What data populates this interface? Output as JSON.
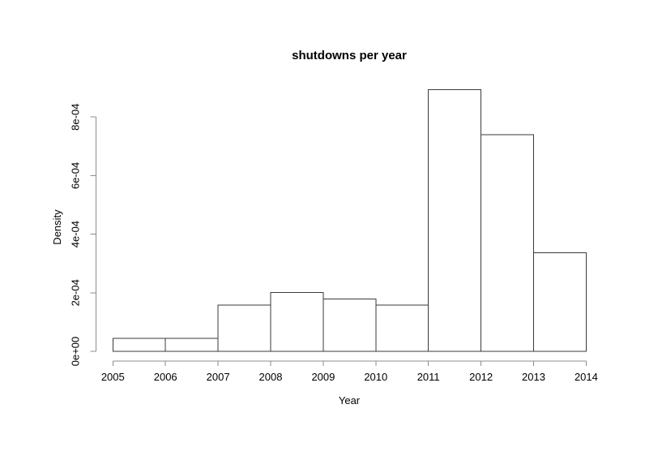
{
  "chart_data": {
    "type": "histogram",
    "title": "shutdowns per year",
    "xlabel": "Year",
    "ylabel": "Density",
    "bin_edges": [
      2005,
      2006,
      2007,
      2008,
      2009,
      2010,
      2011,
      2012,
      2013,
      2014
    ],
    "densities": [
      4.4e-05,
      4.4e-05,
      0.000158,
      0.000201,
      0.000179,
      0.000158,
      0.000894,
      0.000739,
      0.000337
    ],
    "x_tick_labels": [
      "2005",
      "2006",
      "2007",
      "2008",
      "2009",
      "2010",
      "2011",
      "2012",
      "2013",
      "2014"
    ],
    "y_tick_labels": [
      "0e+00",
      "2e-04",
      "4e-04",
      "6e-04",
      "8e-04"
    ],
    "y_tick_values": [
      0,
      0.0002,
      0.0004,
      0.0006,
      0.0008
    ],
    "ylim": [
      0,
      0.0008
    ],
    "grid": false,
    "legend": null,
    "colors": {
      "bar_fill": "#ffffff",
      "bar_border": "#3a3a3a",
      "axis": "#8c8c8c",
      "text": "#000000",
      "background": "#ffffff"
    }
  }
}
